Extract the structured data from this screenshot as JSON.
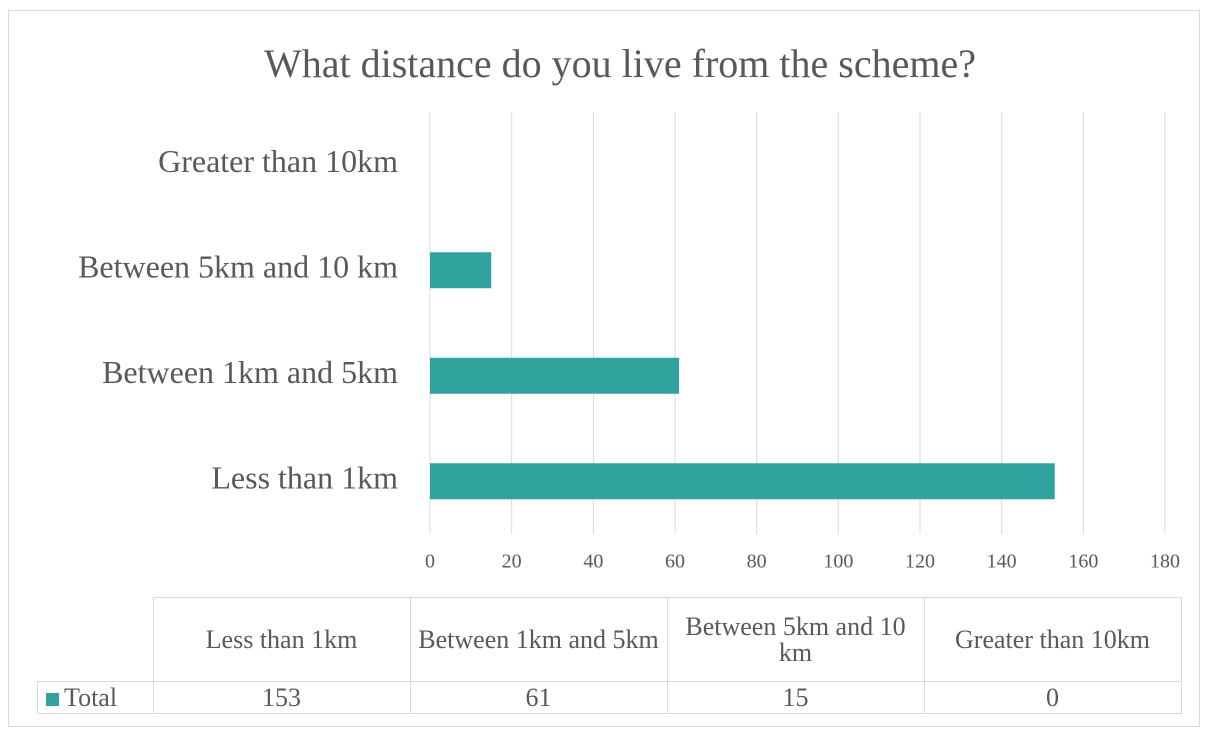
{
  "chart_data": {
    "type": "bar",
    "orientation": "horizontal",
    "title": "What distance do you live from the scheme?",
    "categories": [
      "Less than 1km",
      "Between 1km and 5km",
      "Between 5km and 10 km",
      "Greater than 10km"
    ],
    "series": [
      {
        "name": "Total",
        "color": "#31a39f",
        "values": [
          153,
          61,
          15,
          0
        ]
      }
    ],
    "xlim": [
      0,
      180
    ],
    "xticks": [
      0,
      20,
      40,
      60,
      80,
      100,
      120,
      140,
      160,
      180
    ],
    "grid": true,
    "data_table": true
  }
}
